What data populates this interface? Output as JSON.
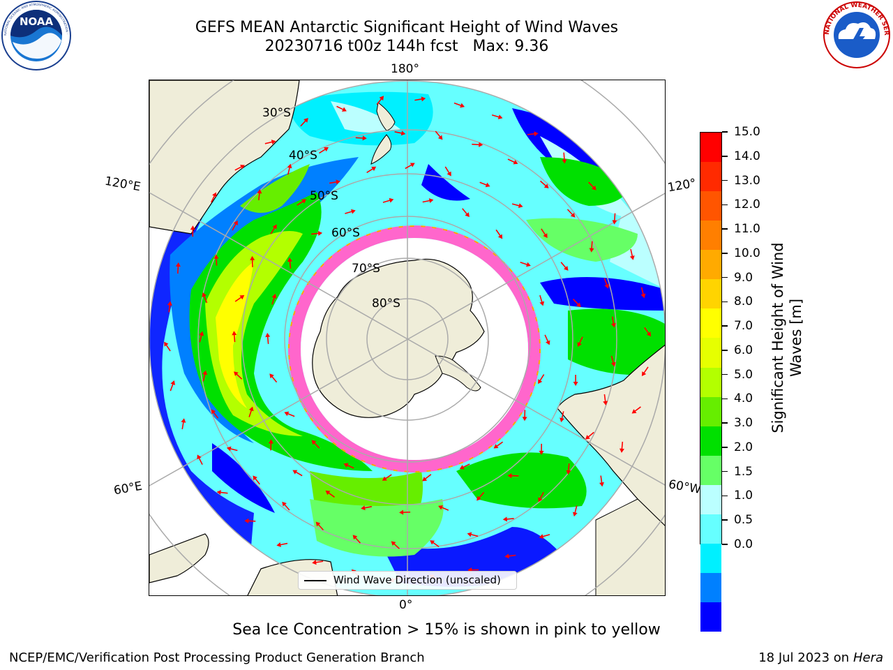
{
  "header": {
    "title_line1": "GEFS MEAN Antarctic Significant Height of Wind Waves",
    "title_line2": "20230716 t00z 144h fcst   Max: 9.36"
  },
  "logos": {
    "noaa_text": "NOAA",
    "noaa_ring_text": "NATIONAL OCEANIC AND ATMOSPHERIC ADMINISTRATION · U.S. DEPARTMENT OF COMMERCE",
    "nws_ring_text": "NATIONAL WEATHER SERVICE"
  },
  "map": {
    "projection": "south-polar-stereographic",
    "lon_labels": {
      "top": "180°",
      "bottom": "0°",
      "upper_left": "120°E",
      "lower_left": "60°E",
      "upper_right": "120°",
      "lower_right": "60°W"
    },
    "lat_labels": [
      "30°S",
      "40°S",
      "50°S",
      "60°S",
      "70°S",
      "80°S"
    ],
    "colors": {
      "land": "#efedd9",
      "ice_pink": "#ff66cc",
      "ice_magenta": "#ee22cc",
      "arrow": "#ff0000",
      "grid": "#aaaaaa"
    },
    "legend_label": "Wind Wave Direction (unscaled)"
  },
  "colorbar": {
    "title_line1": "Significant Height of Wind",
    "title_line2": "Waves [m]",
    "ticks": [
      "15.0",
      "14.0",
      "13.0",
      "12.0",
      "11.0",
      "10.0",
      "9.0",
      "8.0",
      "7.0",
      "6.0",
      "5.0",
      "4.0",
      "3.0",
      "2.0",
      "1.5",
      "1.0",
      "0.5",
      "0.0"
    ],
    "colors_top_to_bottom": [
      "#ff0000",
      "#ff2a00",
      "#ff5500",
      "#ff7f00",
      "#ffaa00",
      "#ffd400",
      "#ffff00",
      "#e6ff00",
      "#b3ff00",
      "#66ee00",
      "#00e000",
      "#66ff66",
      "#bbffff",
      "#66ffff",
      "#00f0ff",
      "#0080ff",
      "#0000ff"
    ]
  },
  "caption": "Sea Ice Concentration > 15% is shown in pink to yellow",
  "footer": {
    "left": "NCEP/EMC/Verification Post Processing Product Generation Branch",
    "right_prefix": "18 Jul 2023 on ",
    "right_italic": "Hera"
  }
}
